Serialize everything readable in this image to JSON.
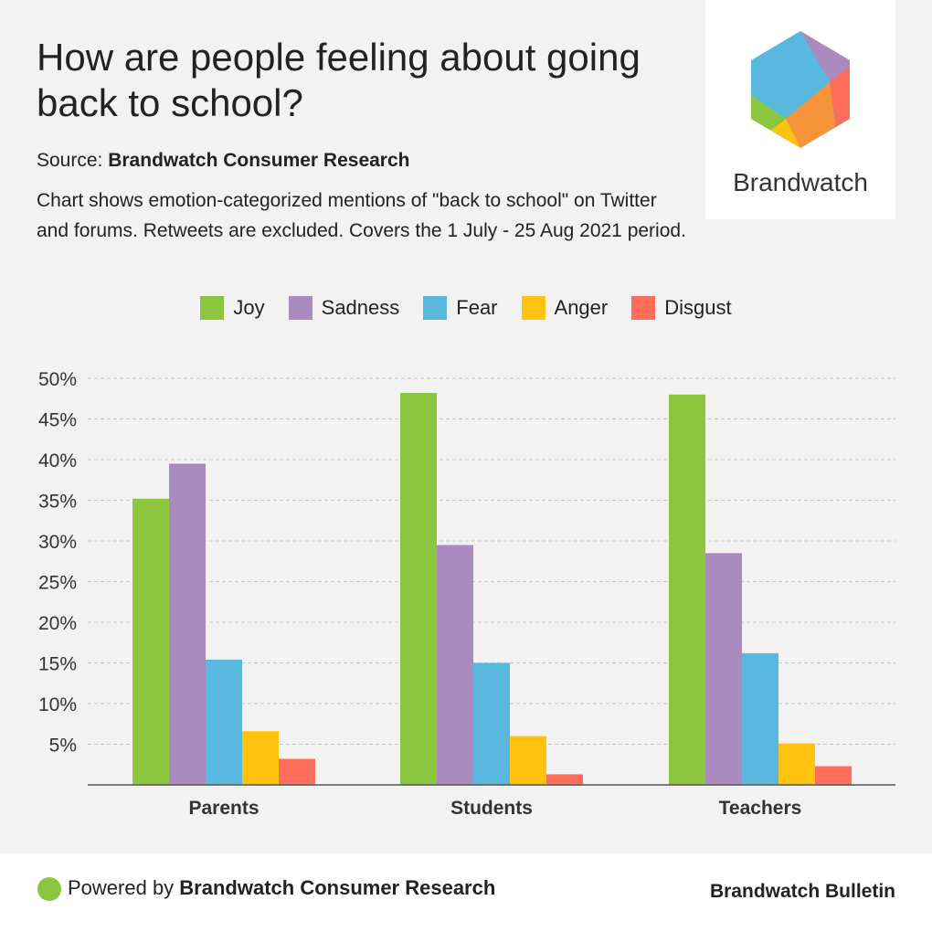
{
  "header": {
    "title": "How are people feeling about going back to school?",
    "source_label": "Source: ",
    "source_name": "Brandwatch Consumer Research",
    "description": "Chart shows emotion-categorized mentions of \"back to school\" on Twitter and forums. Retweets are excluded. Covers the 1 July - 25 Aug 2021 period."
  },
  "logo": {
    "text": "Brandwatch"
  },
  "footer": {
    "powered_label": "Powered by ",
    "powered_name": "Brandwatch Consumer Research",
    "bulletin": "Brandwatch Bulletin"
  },
  "colors": {
    "joy": "#8cc63f",
    "sadness": "#a98bbf",
    "fear": "#5ab8df",
    "anger": "#ffc20e",
    "disgust": "#fd6e5a",
    "grid": "#c8c8c8",
    "axis": "#555555"
  },
  "chart_data": {
    "type": "bar",
    "title": "How are people feeling about going back to school?",
    "xlabel": "",
    "ylabel": "",
    "ylim": [
      0,
      50
    ],
    "yticks": [
      5,
      10,
      15,
      20,
      25,
      30,
      35,
      40,
      45,
      50
    ],
    "ytick_labels": [
      "5%",
      "10%",
      "15%",
      "20%",
      "25%",
      "30%",
      "35%",
      "40%",
      "45%",
      "50%"
    ],
    "grid": true,
    "legend_position": "top-center",
    "categories": [
      "Parents",
      "Students",
      "Teachers"
    ],
    "series": [
      {
        "name": "Joy",
        "color": "#8cc63f",
        "values": [
          35.2,
          48.2,
          48.0
        ]
      },
      {
        "name": "Sadness",
        "color": "#a98bbf",
        "values": [
          39.5,
          29.5,
          28.5
        ]
      },
      {
        "name": "Fear",
        "color": "#5ab8df",
        "values": [
          15.4,
          15.0,
          16.2
        ]
      },
      {
        "name": "Anger",
        "color": "#ffc20e",
        "values": [
          6.6,
          6.0,
          5.1
        ]
      },
      {
        "name": "Disgust",
        "color": "#fd6e5a",
        "values": [
          3.2,
          1.3,
          2.3
        ]
      }
    ]
  }
}
